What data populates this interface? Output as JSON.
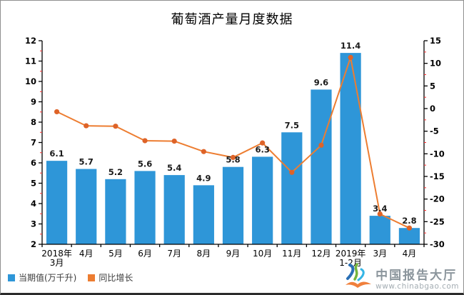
{
  "chart_data": {
    "type": "combo-bar-line",
    "title": "葡萄酒产量月度数据",
    "categories": [
      [
        "2018年",
        "3月"
      ],
      [
        "4月"
      ],
      [
        "5月"
      ],
      [
        "6月"
      ],
      [
        "7月"
      ],
      [
        "8月"
      ],
      [
        "9月"
      ],
      [
        "10月"
      ],
      [
        "11月"
      ],
      [
        "12月"
      ],
      [
        "2019年",
        "1-2月"
      ],
      [
        "3月"
      ],
      [
        "4月"
      ]
    ],
    "bar_series": {
      "name": "当期值(万千升)",
      "values": [
        6.1,
        5.7,
        5.2,
        5.6,
        5.4,
        4.9,
        5.8,
        6.3,
        7.5,
        9.6,
        11.4,
        3.4,
        2.8
      ],
      "color": "#2E96D8"
    },
    "line_series": {
      "name": "同比增长",
      "values": [
        -0.7,
        -3.8,
        -3.9,
        -7.1,
        -7.2,
        -9.5,
        -10.8,
        -7.6,
        -14.1,
        -8.1,
        11.3,
        -23.3,
        -26.4
      ],
      "color": "#ED7D31",
      "marker_color": "#DE6328"
    },
    "left_axis": {
      "min": 2,
      "max": 12,
      "ticks": [
        12,
        11,
        10,
        9,
        8,
        7,
        6,
        5,
        4,
        3,
        2
      ],
      "minor_step": 0.5
    },
    "right_axis": {
      "min": -30,
      "max": 15,
      "ticks": [
        15,
        10,
        5,
        0,
        -5,
        -10,
        -15,
        -20,
        -25,
        -30
      ],
      "minor_step": 2.5
    },
    "grid": false,
    "legend_position": "bottom-left",
    "colors": {
      "axis": "#000000",
      "minor_tick": "#ff2a2a",
      "bar_label": "#1a1a1a",
      "tick_label": "#000000"
    }
  },
  "watermark": {
    "brand": "中国报告大厅",
    "url": "www.chinabgao.com"
  }
}
